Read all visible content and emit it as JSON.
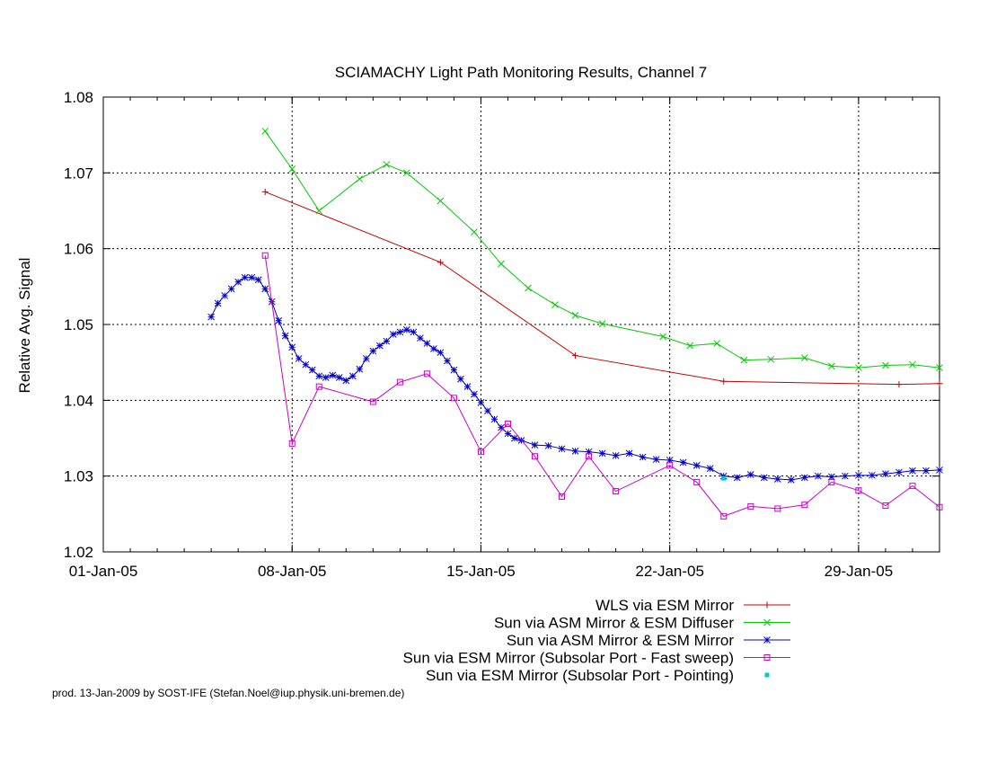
{
  "chart_data": {
    "type": "line",
    "title": "SCIAMACHY Light Path Monitoring Results, Channel 7",
    "xlabel": "",
    "ylabel": "Relative Avg. Signal",
    "xlim": [
      "2005-01-01",
      "2005-02-01"
    ],
    "ylim": [
      1.02,
      1.08
    ],
    "x_ticks": [
      {
        "date": "2005-01-01",
        "label": "01-Jan-05"
      },
      {
        "date": "2005-01-08",
        "label": "08-Jan-05"
      },
      {
        "date": "2005-01-15",
        "label": "15-Jan-05"
      },
      {
        "date": "2005-01-22",
        "label": "22-Jan-05"
      },
      {
        "date": "2005-01-29",
        "label": "29-Jan-05"
      }
    ],
    "y_ticks": [
      {
        "value": 1.02,
        "label": "1.02"
      },
      {
        "value": 1.03,
        "label": "1.03"
      },
      {
        "value": 1.04,
        "label": "1.04"
      },
      {
        "value": 1.05,
        "label": "1.05"
      },
      {
        "value": 1.06,
        "label": "1.06"
      },
      {
        "value": 1.07,
        "label": "1.07"
      },
      {
        "value": 1.08,
        "label": "1.08"
      }
    ],
    "grid": true,
    "legend_position": "bottom-right",
    "series": [
      {
        "name": "WLS via ESM Mirror",
        "color": "#cc0000",
        "marker": "plus",
        "points": [
          [
            "2005-01-07 00:00",
            1.0675
          ],
          [
            "2005-01-13 12:00",
            1.0582
          ],
          [
            "2005-01-18 12:00",
            1.0459
          ],
          [
            "2005-01-24 00:00",
            1.0425
          ],
          [
            "2005-01-30 12:00",
            1.0421
          ],
          [
            "2005-02-01 00:00",
            1.0422
          ]
        ]
      },
      {
        "name": "Sun via ASM Mirror & ESM Diffuser",
        "color": "#00cc00",
        "marker": "cross",
        "points": [
          [
            "2005-01-07 00:00",
            1.0755
          ],
          [
            "2005-01-08 00:00",
            1.0705
          ],
          [
            "2005-01-09 00:00",
            1.065
          ],
          [
            "2005-01-10 12:00",
            1.0692
          ],
          [
            "2005-01-11 12:00",
            1.0711
          ],
          [
            "2005-01-12 06:00",
            1.07
          ],
          [
            "2005-01-13 12:00",
            1.0663
          ],
          [
            "2005-01-14 18:00",
            1.0622
          ],
          [
            "2005-01-15 18:00",
            1.058
          ],
          [
            "2005-01-16 18:00",
            1.0548
          ],
          [
            "2005-01-17 18:00",
            1.0526
          ],
          [
            "2005-01-18 12:00",
            1.0512
          ],
          [
            "2005-01-19 12:00",
            1.0501
          ],
          [
            "2005-01-21 18:00",
            1.0484
          ],
          [
            "2005-01-22 18:00",
            1.0472
          ],
          [
            "2005-01-23 18:00",
            1.0475
          ],
          [
            "2005-01-24 18:00",
            1.0453
          ],
          [
            "2005-01-25 18:00",
            1.0454
          ],
          [
            "2005-01-27 00:00",
            1.0456
          ],
          [
            "2005-01-28 00:00",
            1.0445
          ],
          [
            "2005-01-29 00:00",
            1.0443
          ],
          [
            "2005-01-30 00:00",
            1.0446
          ],
          [
            "2005-01-31 00:00",
            1.0447
          ],
          [
            "2005-02-01 00:00",
            1.0443
          ]
        ]
      },
      {
        "name": "Sun via ASM Mirror & ESM Mirror",
        "color": "#0000cc",
        "marker": "star",
        "points": [
          [
            "2005-01-05 00:00",
            1.051
          ],
          [
            "2005-01-05 06:00",
            1.0528
          ],
          [
            "2005-01-05 12:00",
            1.0538
          ],
          [
            "2005-01-05 18:00",
            1.0547
          ],
          [
            "2005-01-06 00:00",
            1.0556
          ],
          [
            "2005-01-06 06:00",
            1.0562
          ],
          [
            "2005-01-06 12:00",
            1.0562
          ],
          [
            "2005-01-06 18:00",
            1.0559
          ],
          [
            "2005-01-07 00:00",
            1.0547
          ],
          [
            "2005-01-07 06:00",
            1.053
          ],
          [
            "2005-01-07 12:00",
            1.0505
          ],
          [
            "2005-01-07 18:00",
            1.0485
          ],
          [
            "2005-01-08 00:00",
            1.047
          ],
          [
            "2005-01-08 06:00",
            1.0455
          ],
          [
            "2005-01-08 12:00",
            1.0447
          ],
          [
            "2005-01-08 18:00",
            1.044
          ],
          [
            "2005-01-09 00:00",
            1.0432
          ],
          [
            "2005-01-09 06:00",
            1.043
          ],
          [
            "2005-01-09 12:00",
            1.0433
          ],
          [
            "2005-01-09 18:00",
            1.043
          ],
          [
            "2005-01-10 00:00",
            1.0426
          ],
          [
            "2005-01-10 06:00",
            1.0432
          ],
          [
            "2005-01-10 12:00",
            1.0441
          ],
          [
            "2005-01-10 18:00",
            1.0455
          ],
          [
            "2005-01-11 00:00",
            1.0465
          ],
          [
            "2005-01-11 06:00",
            1.0472
          ],
          [
            "2005-01-11 12:00",
            1.0478
          ],
          [
            "2005-01-11 18:00",
            1.0487
          ],
          [
            "2005-01-12 00:00",
            1.049
          ],
          [
            "2005-01-12 06:00",
            1.0493
          ],
          [
            "2005-01-12 12:00",
            1.049
          ],
          [
            "2005-01-12 18:00",
            1.0482
          ],
          [
            "2005-01-13 00:00",
            1.0475
          ],
          [
            "2005-01-13 06:00",
            1.0468
          ],
          [
            "2005-01-13 12:00",
            1.0463
          ],
          [
            "2005-01-13 18:00",
            1.0452
          ],
          [
            "2005-01-14 00:00",
            1.044
          ],
          [
            "2005-01-14 06:00",
            1.0428
          ],
          [
            "2005-01-14 12:00",
            1.0418
          ],
          [
            "2005-01-14 18:00",
            1.0408
          ],
          [
            "2005-01-15 00:00",
            1.0397
          ],
          [
            "2005-01-15 06:00",
            1.0386
          ],
          [
            "2005-01-15 12:00",
            1.0375
          ],
          [
            "2005-01-15 18:00",
            1.0364
          ],
          [
            "2005-01-16 00:00",
            1.0356
          ],
          [
            "2005-01-16 06:00",
            1.035
          ],
          [
            "2005-01-16 12:00",
            1.0347
          ],
          [
            "2005-01-17 00:00",
            1.0341
          ],
          [
            "2005-01-17 12:00",
            1.034
          ],
          [
            "2005-01-18 00:00",
            1.0336
          ],
          [
            "2005-01-18 12:00",
            1.0333
          ],
          [
            "2005-01-19 00:00",
            1.0332
          ],
          [
            "2005-01-19 12:00",
            1.033
          ],
          [
            "2005-01-20 00:00",
            1.0327
          ],
          [
            "2005-01-20 12:00",
            1.033
          ],
          [
            "2005-01-21 00:00",
            1.0325
          ],
          [
            "2005-01-21 12:00",
            1.0322
          ],
          [
            "2005-01-22 00:00",
            1.0321
          ],
          [
            "2005-01-22 12:00",
            1.0318
          ],
          [
            "2005-01-23 00:00",
            1.0314
          ],
          [
            "2005-01-23 12:00",
            1.031
          ],
          [
            "2005-01-24 00:00",
            1.03
          ],
          [
            "2005-01-24 12:00",
            1.0298
          ],
          [
            "2005-01-25 00:00",
            1.0302
          ],
          [
            "2005-01-25 12:00",
            1.0298
          ],
          [
            "2005-01-26 00:00",
            1.0296
          ],
          [
            "2005-01-26 12:00",
            1.0295
          ],
          [
            "2005-01-27 00:00",
            1.0298
          ],
          [
            "2005-01-27 12:00",
            1.03
          ],
          [
            "2005-01-28 00:00",
            1.0299
          ],
          [
            "2005-01-28 12:00",
            1.03
          ],
          [
            "2005-01-29 00:00",
            1.0301
          ],
          [
            "2005-01-29 12:00",
            1.0301
          ],
          [
            "2005-01-30 00:00",
            1.0303
          ],
          [
            "2005-01-30 12:00",
            1.0305
          ],
          [
            "2005-01-31 00:00",
            1.0307
          ],
          [
            "2005-01-31 12:00",
            1.0307
          ],
          [
            "2005-02-01 00:00",
            1.0308
          ]
        ]
      },
      {
        "name": "Sun via ESM Mirror (Subsolar Port - Fast sweep)",
        "color": "#cc00cc",
        "marker": "square",
        "points": [
          [
            "2005-01-07 00:00",
            1.0591
          ],
          [
            "2005-01-08 00:00",
            1.0343
          ],
          [
            "2005-01-09 00:00",
            1.0418
          ],
          [
            "2005-01-11 00:00",
            1.0398
          ],
          [
            "2005-01-12 00:00",
            1.0424
          ],
          [
            "2005-01-13 00:00",
            1.0435
          ],
          [
            "2005-01-14 00:00",
            1.0403
          ],
          [
            "2005-01-15 00:00",
            1.0332
          ],
          [
            "2005-01-16 00:00",
            1.0369
          ],
          [
            "2005-01-17 00:00",
            1.0326
          ],
          [
            "2005-01-18 00:00",
            1.0273
          ],
          [
            "2005-01-19 00:00",
            1.0326
          ],
          [
            "2005-01-20 00:00",
            1.028
          ],
          [
            "2005-01-22 00:00",
            1.0314
          ],
          [
            "2005-01-23 00:00",
            1.0292
          ],
          [
            "2005-01-24 00:00",
            1.0247
          ],
          [
            "2005-01-25 00:00",
            1.026
          ],
          [
            "2005-01-26 00:00",
            1.0257
          ],
          [
            "2005-01-27 00:00",
            1.0262
          ],
          [
            "2005-01-28 00:00",
            1.0292
          ],
          [
            "2005-01-29 00:00",
            1.0281
          ],
          [
            "2005-01-30 00:00",
            1.0261
          ],
          [
            "2005-01-31 00:00",
            1.0287
          ],
          [
            "2005-02-01 00:00",
            1.0259
          ]
        ]
      },
      {
        "name": "Sun via ESM Mirror (Subsolar Port - Pointing)",
        "color": "#00cccc",
        "marker": "dot",
        "points": [
          [
            "2005-01-24 00:00",
            1.0297
          ]
        ]
      }
    ],
    "footer": "prod. 13-Jan-2009 by SOST-IFE (Stefan.Noel@iup.physik.uni-bremen.de)"
  }
}
